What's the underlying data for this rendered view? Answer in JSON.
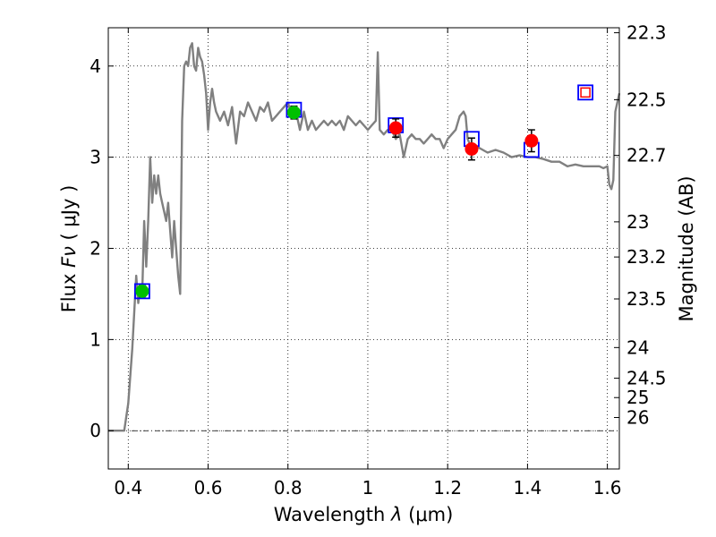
{
  "chart_data": {
    "type": "line",
    "xlabel_text": "Wavelength",
    "xlabel_symbol": "λ",
    "xlabel_unit": "(μm)",
    "ylabel_text": "Flux",
    "ylabel_symbol": "Fν",
    "ylabel_unit": "( μJy )",
    "y2label": "Magnitude (AB)",
    "xlim": [
      0.35,
      1.63
    ],
    "ylim": [
      -0.42,
      4.42
    ],
    "x_ticks": [
      0.4,
      0.6,
      0.8,
      1.0,
      1.2,
      1.4,
      1.6
    ],
    "x_tick_labels": [
      "0.4",
      "0.6",
      "0.8",
      "1",
      "1.2",
      "1.4",
      "1.6"
    ],
    "y_ticks": [
      0,
      1,
      2,
      3,
      4
    ],
    "y_tick_labels": [
      "0",
      "1",
      "2",
      "3",
      "4"
    ],
    "mag_ticks": [
      22.3,
      22.5,
      22.7,
      23,
      23.2,
      23.5,
      24,
      24.5,
      25,
      26
    ],
    "mag_tick_labels": [
      "22.3",
      "22.5",
      "22.7",
      "23",
      "23.2",
      "23.5",
      "24",
      "24.5",
      "25",
      "26"
    ],
    "grid": true,
    "colors": {
      "model": "#808080",
      "green": "#00c000",
      "red": "#ff0000",
      "box": "#0000ff",
      "open_box_inner": "#ff0000"
    },
    "series": [
      {
        "name": "model spectrum",
        "x": [
          0.35,
          0.39,
          0.4,
          0.41,
          0.415,
          0.42,
          0.425,
          0.43,
          0.435,
          0.44,
          0.445,
          0.45,
          0.455,
          0.46,
          0.465,
          0.47,
          0.475,
          0.48,
          0.485,
          0.49,
          0.495,
          0.5,
          0.505,
          0.51,
          0.515,
          0.52,
          0.525,
          0.53,
          0.535,
          0.54,
          0.545,
          0.55,
          0.555,
          0.56,
          0.565,
          0.57,
          0.575,
          0.58,
          0.585,
          0.59,
          0.595,
          0.6,
          0.605,
          0.61,
          0.615,
          0.62,
          0.63,
          0.64,
          0.65,
          0.66,
          0.67,
          0.68,
          0.69,
          0.7,
          0.71,
          0.72,
          0.73,
          0.74,
          0.75,
          0.76,
          0.77,
          0.78,
          0.79,
          0.8,
          0.81,
          0.82,
          0.83,
          0.84,
          0.85,
          0.86,
          0.87,
          0.88,
          0.89,
          0.9,
          0.91,
          0.92,
          0.93,
          0.94,
          0.95,
          0.96,
          0.97,
          0.98,
          0.99,
          1.0,
          1.01,
          1.02,
          1.025,
          1.03,
          1.04,
          1.05,
          1.06,
          1.07,
          1.08,
          1.09,
          1.1,
          1.11,
          1.12,
          1.13,
          1.14,
          1.15,
          1.16,
          1.17,
          1.18,
          1.19,
          1.2,
          1.21,
          1.22,
          1.23,
          1.24,
          1.245,
          1.25,
          1.26,
          1.27,
          1.28,
          1.3,
          1.32,
          1.34,
          1.36,
          1.38,
          1.4,
          1.42,
          1.44,
          1.46,
          1.48,
          1.5,
          1.52,
          1.54,
          1.56,
          1.58,
          1.59,
          1.6,
          1.605,
          1.61,
          1.615,
          1.62,
          1.63
        ],
        "values": [
          0.0,
          0.0,
          0.3,
          0.9,
          1.3,
          1.7,
          1.4,
          1.6,
          1.5,
          2.3,
          1.8,
          2.3,
          3.0,
          2.5,
          2.8,
          2.6,
          2.8,
          2.6,
          2.5,
          2.4,
          2.3,
          2.5,
          2.2,
          1.9,
          2.3,
          2.0,
          1.7,
          1.5,
          3.4,
          4.0,
          4.05,
          4.0,
          4.2,
          4.25,
          4.0,
          3.95,
          4.2,
          4.1,
          4.05,
          3.9,
          3.7,
          3.3,
          3.6,
          3.75,
          3.6,
          3.5,
          3.4,
          3.5,
          3.35,
          3.55,
          3.15,
          3.5,
          3.45,
          3.6,
          3.5,
          3.4,
          3.55,
          3.5,
          3.6,
          3.4,
          3.45,
          3.5,
          3.55,
          3.6,
          3.45,
          3.5,
          3.3,
          3.5,
          3.3,
          3.4,
          3.3,
          3.35,
          3.4,
          3.35,
          3.4,
          3.35,
          3.4,
          3.3,
          3.45,
          3.4,
          3.35,
          3.4,
          3.35,
          3.3,
          3.35,
          3.4,
          4.15,
          3.3,
          3.25,
          3.3,
          3.3,
          3.2,
          3.25,
          3.0,
          3.2,
          3.25,
          3.2,
          3.2,
          3.15,
          3.2,
          3.25,
          3.2,
          3.2,
          3.1,
          3.2,
          3.25,
          3.3,
          3.45,
          3.5,
          3.45,
          3.2,
          3.1,
          3.12,
          3.1,
          3.05,
          3.08,
          3.05,
          3.0,
          3.02,
          3.0,
          3.0,
          2.98,
          2.95,
          2.95,
          2.9,
          2.92,
          2.9,
          2.9,
          2.9,
          2.88,
          2.9,
          2.7,
          2.65,
          2.75,
          3.5,
          3.7
        ]
      },
      {
        "name": "green measured",
        "x": [
          0.435,
          0.815
        ],
        "values": [
          1.53,
          3.49
        ],
        "errors": [
          0.06,
          0.07
        ]
      },
      {
        "name": "red measured",
        "x": [
          1.07,
          1.26,
          1.41
        ],
        "values": [
          3.32,
          3.09,
          3.18
        ],
        "errors": [
          0.1,
          0.12,
          0.12
        ]
      },
      {
        "name": "blue model boxes",
        "x": [
          0.435,
          0.815,
          1.07,
          1.26,
          1.41
        ],
        "values": [
          1.53,
          3.52,
          3.35,
          3.2,
          3.08
        ]
      },
      {
        "name": "open upper-limit box",
        "x": [
          1.545
        ],
        "values": [
          3.71
        ]
      }
    ]
  }
}
